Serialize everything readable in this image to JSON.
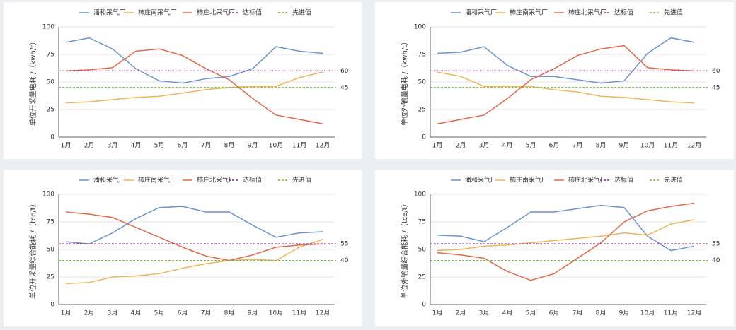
{
  "chart_data": [
    {
      "type": "line",
      "ylabel": "单位开采量电耗 /（kwh/t）",
      "categories": [
        "1月",
        "2月",
        "3月",
        "4月",
        "5月",
        "6月",
        "7月",
        "8月",
        "9月",
        "10月",
        "11月",
        "12月"
      ],
      "ylim": [
        0,
        100
      ],
      "yticks": [
        0,
        25,
        50,
        75,
        100
      ],
      "series": [
        {
          "name": "潘和采气厂",
          "color": "#6b93d0",
          "values": [
            86,
            90,
            80,
            62,
            51,
            49,
            53,
            55,
            62,
            82,
            78,
            76
          ]
        },
        {
          "name": "柿庄南采气厂",
          "color": "#f0b55a",
          "values": [
            31,
            32,
            34,
            36,
            37,
            40,
            43,
            45,
            46,
            46,
            54,
            59
          ]
        },
        {
          "name": "柿庄北采气厂",
          "color": "#e06a4a",
          "values": [
            60,
            61,
            63,
            78,
            80,
            74,
            62,
            52,
            35,
            20,
            16,
            12
          ]
        },
        {
          "name": "达标值",
          "color": "#7a2a6a",
          "dashed": true,
          "values": [
            60,
            60,
            60,
            60,
            60,
            60,
            60,
            60,
            60,
            60,
            60,
            60
          ]
        },
        {
          "name": "先进值",
          "color": "#7ab648",
          "dashed": true,
          "values": [
            45,
            45,
            45,
            45,
            45,
            45,
            45,
            45,
            45,
            45,
            45,
            45
          ]
        }
      ]
    },
    {
      "type": "line",
      "ylabel": "单位外输量电耗 /（kwh/t）",
      "categories": [
        "1月",
        "2月",
        "3月",
        "4月",
        "5月",
        "6月",
        "7月",
        "8月",
        "9月",
        "10月",
        "11月",
        "12月"
      ],
      "ylim": [
        0,
        100
      ],
      "yticks": [
        0,
        25,
        50,
        75,
        100
      ],
      "series": [
        {
          "name": "潘和采气厂",
          "color": "#6b93d0",
          "values": [
            76,
            77,
            82,
            65,
            55,
            55,
            52,
            49,
            51,
            76,
            90,
            86
          ]
        },
        {
          "name": "柿庄南采气厂",
          "color": "#f0b55a",
          "values": [
            59,
            55,
            46,
            46,
            46,
            43,
            41,
            37,
            36,
            34,
            32,
            31
          ]
        },
        {
          "name": "柿庄北采气厂",
          "color": "#e06a4a",
          "values": [
            12,
            16,
            20,
            35,
            52,
            62,
            74,
            80,
            83,
            63,
            61,
            60
          ]
        },
        {
          "name": "达标值",
          "color": "#7a2a6a",
          "dashed": true,
          "values": [
            60,
            60,
            60,
            60,
            60,
            60,
            60,
            60,
            60,
            60,
            60,
            60
          ]
        },
        {
          "name": "先进值",
          "color": "#7ab648",
          "dashed": true,
          "values": [
            45,
            45,
            45,
            45,
            45,
            45,
            45,
            45,
            45,
            45,
            45,
            45
          ]
        }
      ]
    },
    {
      "type": "line",
      "ylabel": "单位开采量综合能耗 /（tce/t）",
      "categories": [
        "1月",
        "2月",
        "3月",
        "4月",
        "5月",
        "6月",
        "7月",
        "8月",
        "9月",
        "10月",
        "11月",
        "12月"
      ],
      "ylim": [
        0,
        100
      ],
      "yticks": [
        0,
        25,
        50,
        75,
        100
      ],
      "series": [
        {
          "name": "潘和采气厂",
          "color": "#6b93d0",
          "values": [
            57,
            55,
            65,
            78,
            88,
            89,
            84,
            84,
            72,
            61,
            65,
            66
          ]
        },
        {
          "name": "柿庄南采气厂",
          "color": "#f0b55a",
          "values": [
            19,
            20,
            25,
            26,
            28,
            33,
            37,
            40,
            41,
            40,
            52,
            59
          ]
        },
        {
          "name": "柿庄北采气厂",
          "color": "#e06a4a",
          "values": [
            84,
            82,
            79,
            70,
            61,
            52,
            44,
            40,
            45,
            52,
            54,
            55
          ]
        },
        {
          "name": "达标值",
          "color": "#7a2a6a",
          "dashed": true,
          "values": [
            55,
            55,
            55,
            55,
            55,
            55,
            55,
            55,
            55,
            55,
            55,
            55
          ]
        },
        {
          "name": "先进值",
          "color": "#7ab648",
          "dashed": true,
          "values": [
            40,
            40,
            40,
            40,
            40,
            40,
            40,
            40,
            40,
            40,
            40,
            40
          ]
        }
      ]
    },
    {
      "type": "line",
      "ylabel": "单位外输量综合能耗 /（tce/t）",
      "categories": [
        "1月",
        "2月",
        "3月",
        "4月",
        "5月",
        "6月",
        "7月",
        "8月",
        "9月",
        "10月",
        "11月",
        "12月"
      ],
      "ylim": [
        0,
        100
      ],
      "yticks": [
        0,
        25,
        50,
        75,
        100
      ],
      "series": [
        {
          "name": "潘和采气厂",
          "color": "#6b93d0",
          "values": [
            63,
            62,
            57,
            70,
            84,
            84,
            87,
            90,
            88,
            62,
            49,
            53
          ]
        },
        {
          "name": "柿庄南采气厂",
          "color": "#f0b55a",
          "values": [
            49,
            50,
            53,
            54,
            56,
            58,
            60,
            62,
            65,
            63,
            73,
            77
          ]
        },
        {
          "name": "柿庄北采气厂",
          "color": "#e06a4a",
          "values": [
            47,
            45,
            42,
            30,
            22,
            28,
            42,
            56,
            75,
            85,
            89,
            92
          ]
        },
        {
          "name": "达标值",
          "color": "#7a2a6a",
          "dashed": true,
          "values": [
            55,
            55,
            55,
            55,
            55,
            55,
            55,
            55,
            55,
            55,
            55,
            55
          ]
        },
        {
          "name": "先进值",
          "color": "#7ab648",
          "dashed": true,
          "values": [
            40,
            40,
            40,
            40,
            40,
            40,
            40,
            40,
            40,
            40,
            40,
            40
          ]
        }
      ]
    }
  ]
}
